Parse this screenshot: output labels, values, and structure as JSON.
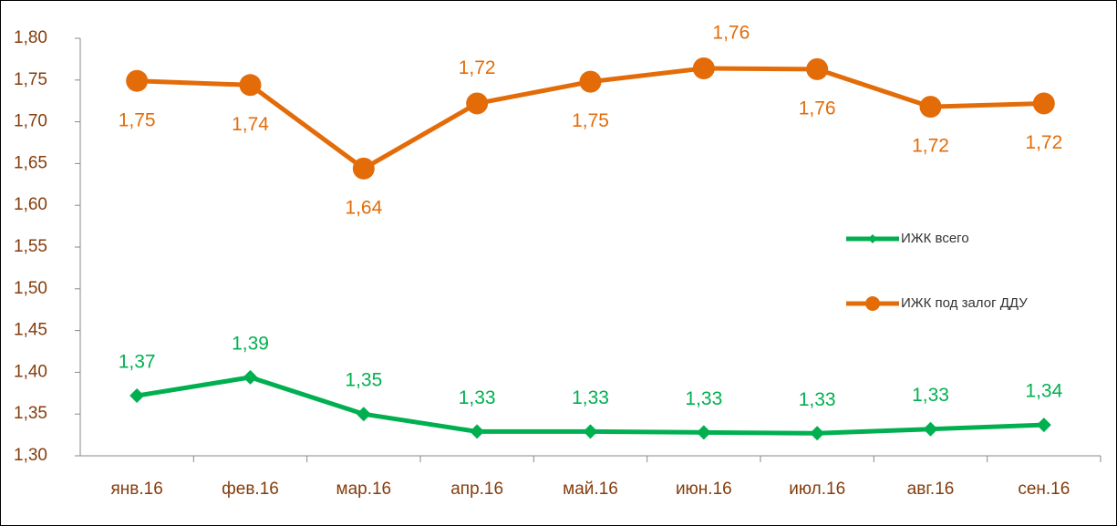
{
  "chart_data": {
    "type": "line",
    "categories": [
      "янв.16",
      "фев.16",
      "мар.16",
      "апр.16",
      "май.16",
      "июн.16",
      "июл.16",
      "авг.16",
      "сен.16"
    ],
    "series": [
      {
        "name": "ИЖК всего",
        "color": "#00b050",
        "marker": "diamond",
        "values": [
          1.372,
          1.394,
          1.35,
          1.329,
          1.329,
          1.328,
          1.327,
          1.332,
          1.337
        ],
        "value_labels": [
          "1,37",
          "1,39",
          "1,35",
          "1,33",
          "1,33",
          "1,33",
          "1,33",
          "1,33",
          "1,34"
        ]
      },
      {
        "name": "ИЖК под залог ДДУ",
        "color": "#e36c09",
        "marker": "circle",
        "values": [
          1.749,
          1.744,
          1.644,
          1.722,
          1.748,
          1.764,
          1.763,
          1.718,
          1.722
        ],
        "value_labels": [
          "1,75",
          "1,74",
          "1,64",
          "1,72",
          "1,75",
          "1,76",
          "1,76",
          "1,72",
          "1,72"
        ]
      }
    ],
    "ylim": [
      1.3,
      1.8
    ],
    "yticks": [
      {
        "value": 1.3,
        "label": "1,30"
      },
      {
        "value": 1.35,
        "label": "1,35"
      },
      {
        "value": 1.4,
        "label": "1,40"
      },
      {
        "value": 1.45,
        "label": "1,45"
      },
      {
        "value": 1.5,
        "label": "1,50"
      },
      {
        "value": 1.55,
        "label": "1,55"
      },
      {
        "value": 1.6,
        "label": "1,60"
      },
      {
        "value": 1.65,
        "label": "1,65"
      },
      {
        "value": 1.7,
        "label": "1,70"
      },
      {
        "value": 1.75,
        "label": "1,75"
      },
      {
        "value": 1.8,
        "label": "1,80"
      }
    ],
    "grid": false
  }
}
